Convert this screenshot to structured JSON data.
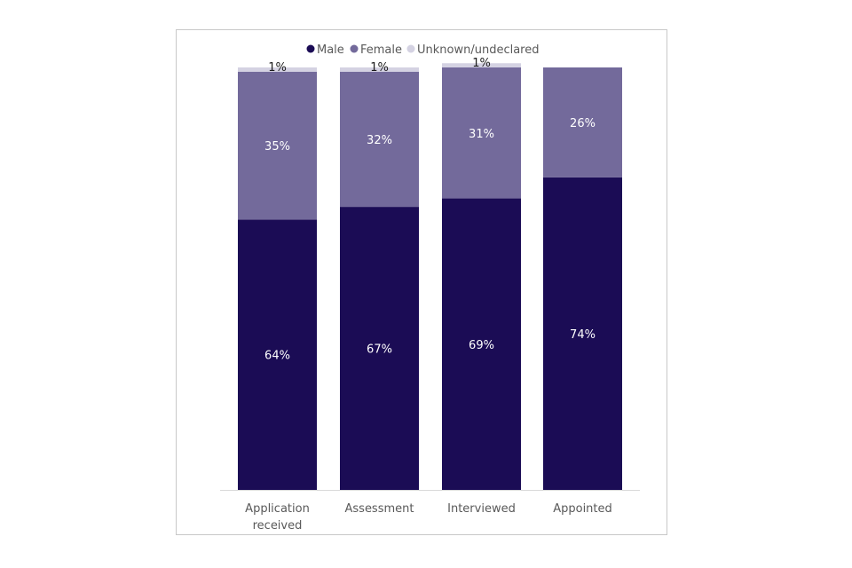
{
  "chart_data": {
    "type": "bar",
    "stacked": true,
    "orientation": "vertical",
    "categories": [
      "Application received",
      "Assessment",
      "Interviewed",
      "Appointed"
    ],
    "series": [
      {
        "name": "Male",
        "values": [
          64,
          67,
          69,
          74
        ],
        "labels": [
          "64%",
          "67%",
          "69%",
          "74%"
        ],
        "color": "#1b0c55",
        "label_color": "#ffffff"
      },
      {
        "name": "Female",
        "values": [
          35,
          32,
          31,
          26
        ],
        "labels": [
          "35%",
          "32%",
          "31%",
          "26%"
        ],
        "color": "#736a9b",
        "label_color": "#ffffff"
      },
      {
        "name": "Unknown/undeclared",
        "values": [
          1,
          1,
          1,
          0
        ],
        "labels": [
          "1%",
          "1%",
          "1%",
          ""
        ],
        "color": "#d4d2e2",
        "label_color": "#1a1a1a"
      }
    ],
    "title": "",
    "xlabel": "",
    "ylabel": "",
    "ylim": [
      0,
      100
    ],
    "legend_position": "top",
    "grid": false,
    "axis_color": "#d9d9d9"
  }
}
